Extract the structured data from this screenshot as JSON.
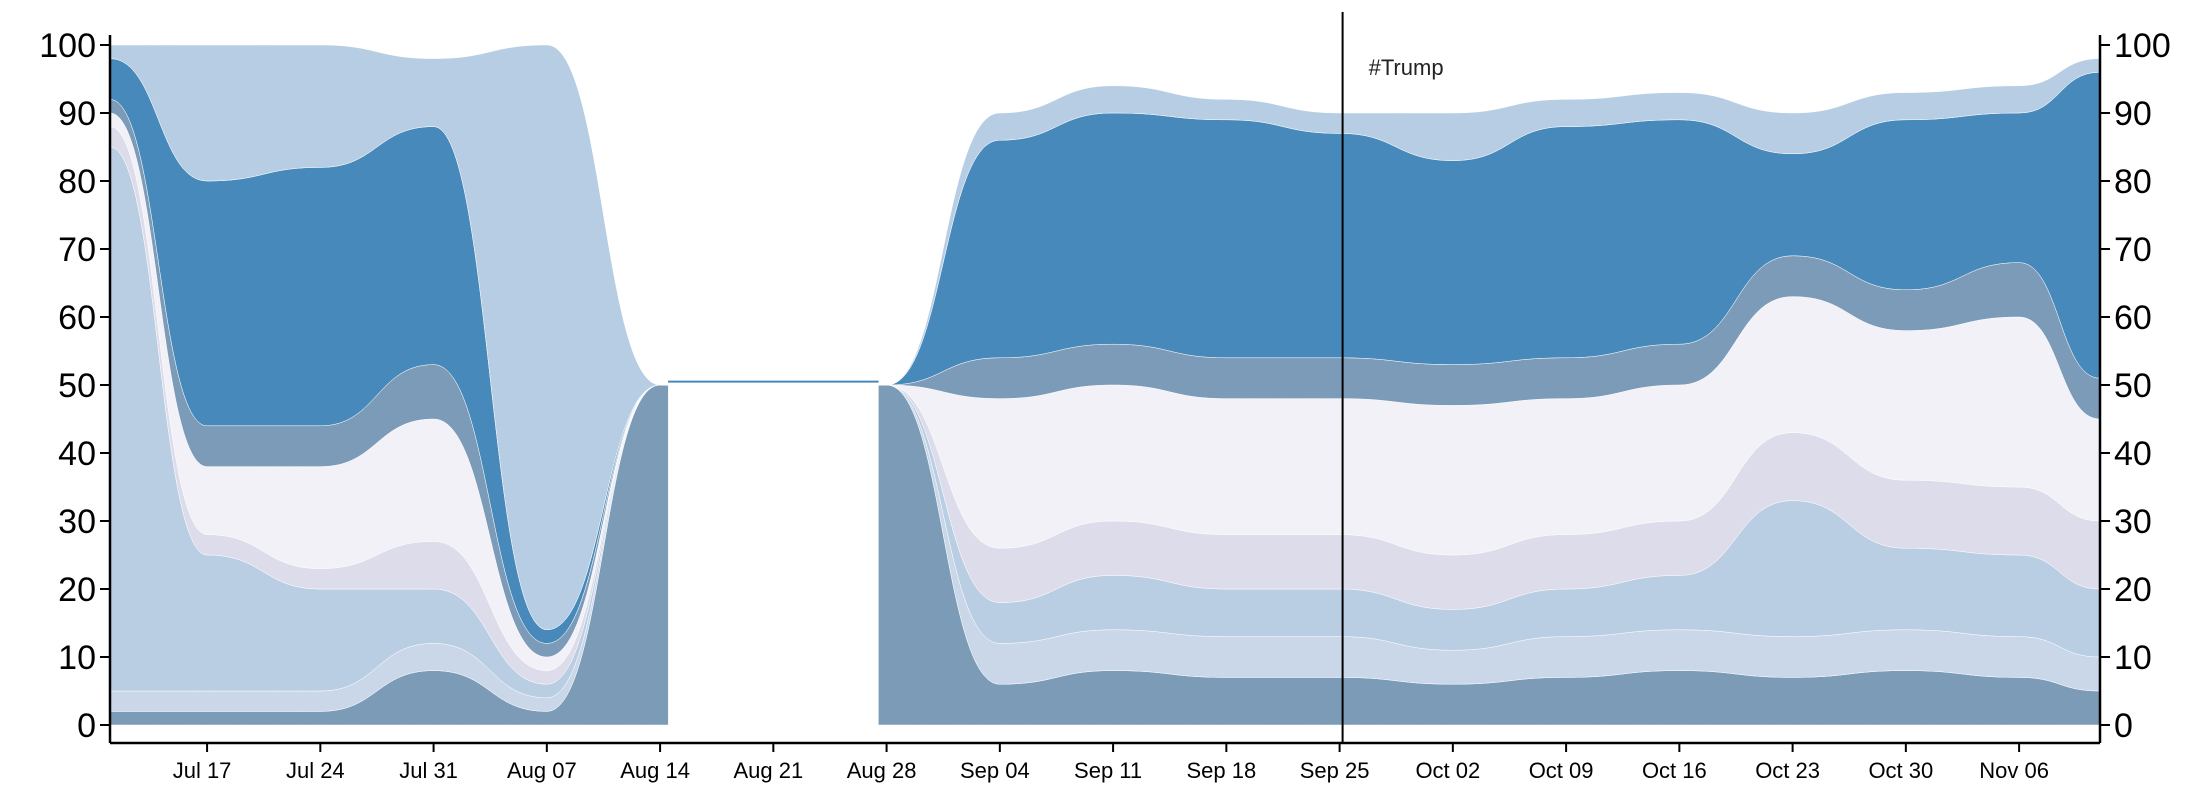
{
  "chart_data": {
    "type": "area",
    "title": "",
    "xlabel": "",
    "ylabel": "",
    "ylim": [
      0,
      100
    ],
    "y_ticks": [
      0,
      10,
      20,
      30,
      40,
      50,
      60,
      70,
      80,
      90,
      100
    ],
    "x_range": [
      "2016-07-11",
      "2016-11-11"
    ],
    "x_ticks": [
      {
        "date": "2016-07-17",
        "label": "Jul 17"
      },
      {
        "date": "2016-07-24",
        "label": "Jul 24"
      },
      {
        "date": "2016-07-31",
        "label": "Jul 31"
      },
      {
        "date": "2016-08-07",
        "label": "Aug 07"
      },
      {
        "date": "2016-08-14",
        "label": "Aug 14"
      },
      {
        "date": "2016-08-21",
        "label": "Aug 21"
      },
      {
        "date": "2016-08-28",
        "label": "Aug 28"
      },
      {
        "date": "2016-09-04",
        "label": "Sep 04"
      },
      {
        "date": "2016-09-11",
        "label": "Sep 11"
      },
      {
        "date": "2016-09-18",
        "label": "Sep 18"
      },
      {
        "date": "2016-09-25",
        "label": "Sep 25"
      },
      {
        "date": "2016-10-02",
        "label": "Oct 02"
      },
      {
        "date": "2016-10-09",
        "label": "Oct 09"
      },
      {
        "date": "2016-10-16",
        "label": "Oct 16"
      },
      {
        "date": "2016-10-23",
        "label": "Oct 23"
      },
      {
        "date": "2016-10-30",
        "label": "Oct 30"
      },
      {
        "date": "2016-11-06",
        "label": "Nov 06"
      }
    ],
    "dates": [
      "2016-07-11",
      "2016-07-17",
      "2016-07-24",
      "2016-07-31",
      "2016-08-07",
      "2016-08-14",
      "2016-08-28",
      "2016-09-04",
      "2016-09-11",
      "2016-09-18",
      "2016-09-25",
      "2016-10-02",
      "2016-10-09",
      "2016-10-16",
      "2016-10-23",
      "2016-10-30",
      "2016-11-06",
      "2016-11-11"
    ],
    "series": [
      {
        "color": "#7c9bb6",
        "values": [
          2,
          2,
          2,
          8,
          2,
          50,
          50,
          6,
          8,
          7,
          7,
          6,
          7,
          8,
          7,
          8,
          7,
          5
        ]
      },
      {
        "color": "#c9d7e8",
        "values": [
          3,
          3,
          3,
          4,
          2,
          0,
          0,
          6,
          6,
          6,
          6,
          5,
          6,
          6,
          6,
          6,
          6,
          5
        ]
      },
      {
        "color": "#b9cde3",
        "values": [
          80,
          20,
          15,
          8,
          2,
          0,
          0,
          6,
          8,
          7,
          7,
          6,
          7,
          8,
          20,
          12,
          12,
          10
        ]
      },
      {
        "color": "#dcdcea",
        "values": [
          3,
          3,
          3,
          7,
          2,
          0,
          0,
          8,
          8,
          8,
          8,
          8,
          8,
          8,
          10,
          10,
          10,
          10
        ]
      },
      {
        "color": "#f1f1f7",
        "values": [
          2,
          10,
          15,
          18,
          2,
          0,
          0,
          22,
          20,
          20,
          20,
          22,
          20,
          20,
          20,
          22,
          25,
          15
        ]
      },
      {
        "color": "#7b9bb8",
        "values": [
          2,
          6,
          6,
          8,
          2,
          0,
          0,
          6,
          6,
          6,
          6,
          6,
          6,
          6,
          6,
          6,
          8,
          6
        ]
      },
      {
        "color": "#4689ba",
        "values": [
          6,
          36,
          38,
          35,
          2,
          0,
          0,
          32,
          34,
          35,
          33,
          30,
          34,
          33,
          15,
          25,
          22,
          45
        ]
      },
      {
        "color": "#b7cde3",
        "values": [
          2,
          20,
          18,
          10,
          86,
          0,
          0,
          4,
          4,
          3,
          3,
          7,
          4,
          4,
          6,
          4,
          4,
          2
        ]
      }
    ],
    "cursor": {
      "date": "2016-09-25",
      "label": "#Trump"
    }
  }
}
